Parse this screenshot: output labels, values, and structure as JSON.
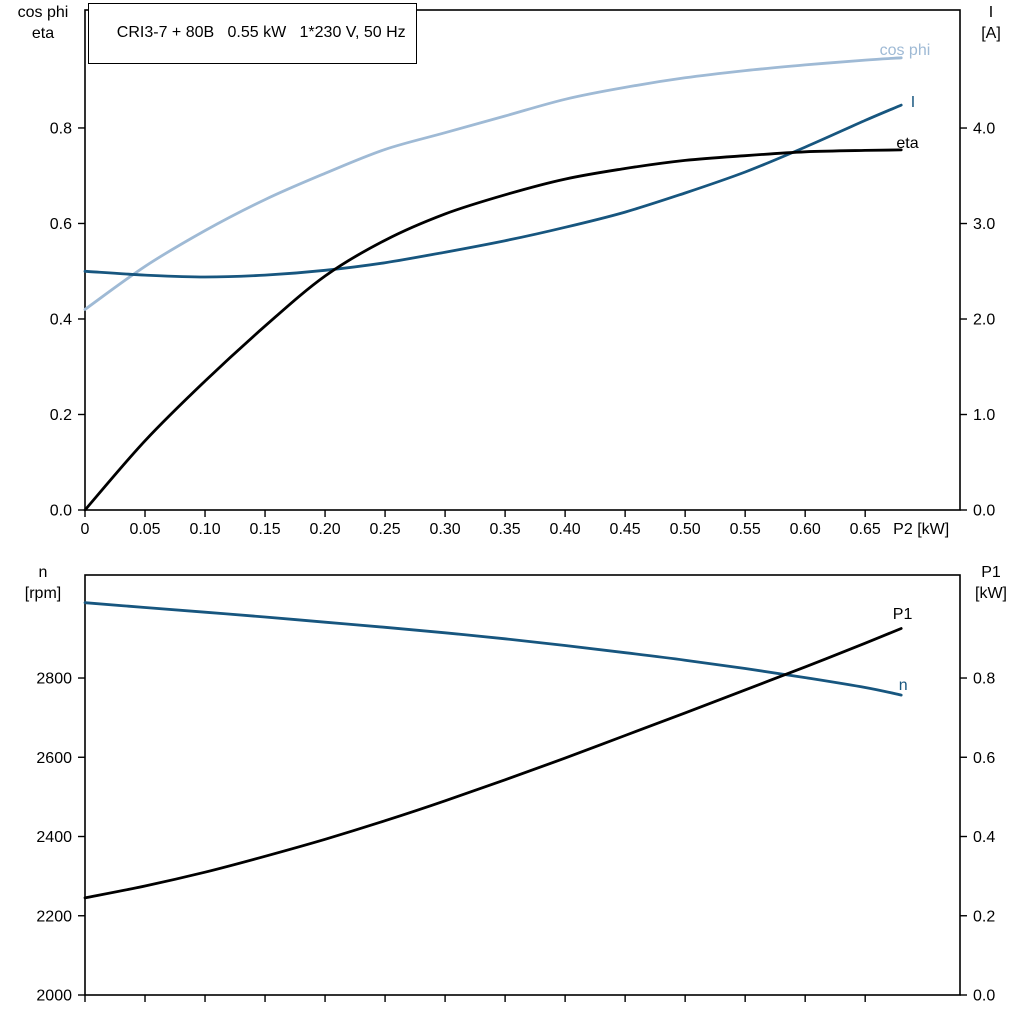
{
  "header": {
    "title": "CRI3-7 + 80B   0.55 kW   1*230 V, 50 Hz"
  },
  "colors": {
    "black": "#000000",
    "dark_blue": "#17567f",
    "light_blue": "#9fbad5",
    "frame": "#000000",
    "background": "#ffffff"
  },
  "chart_data": [
    {
      "type": "line",
      "title": "CRI3-7 + 80B   0.55 kW   1*230 V, 50 Hz",
      "x_axis": {
        "label": "P2 [kW]",
        "min": 0,
        "max": 0.729,
        "tick_values": [
          0,
          0.05,
          0.1,
          0.15,
          0.2,
          0.25,
          0.3,
          0.35,
          0.4,
          0.45,
          0.5,
          0.55,
          0.6,
          0.65
        ],
        "tick_labels": [
          "0",
          "0.05",
          "0.10",
          "0.15",
          "0.20",
          "0.25",
          "0.30",
          "0.35",
          "0.40",
          "0.45",
          "0.50",
          "0.55",
          "0.60",
          "0.65"
        ]
      },
      "left_axis": {
        "title_line1": "cos phi",
        "title_line2": "eta",
        "min": 0,
        "max": 1.047,
        "tick_values": [
          0,
          0.2,
          0.4,
          0.6,
          0.8
        ],
        "tick_labels": [
          "0.0",
          "0.2",
          "0.4",
          "0.6",
          "0.8"
        ]
      },
      "right_axis": {
        "title_line1": "I",
        "title_line2": "[A]",
        "min": 0,
        "max": 5.236,
        "tick_values": [
          0,
          1,
          2,
          3,
          4
        ],
        "tick_labels": [
          "0.0",
          "1.0",
          "2.0",
          "3.0",
          "4.0"
        ]
      },
      "series": [
        {
          "name": "cos phi",
          "axis": "left",
          "color": "light_blue",
          "x": [
            0,
            0.05,
            0.1,
            0.15,
            0.2,
            0.25,
            0.3,
            0.35,
            0.4,
            0.45,
            0.5,
            0.55,
            0.6,
            0.65,
            0.68
          ],
          "y": [
            0.42,
            0.51,
            0.585,
            0.65,
            0.705,
            0.755,
            0.79,
            0.825,
            0.86,
            0.885,
            0.905,
            0.92,
            0.932,
            0.942,
            0.947
          ],
          "label": {
            "text": "cos phi",
            "x": 0.662,
            "y": 0.963
          }
        },
        {
          "name": "I",
          "axis": "right",
          "color": "dark_blue",
          "x": [
            0,
            0.05,
            0.1,
            0.15,
            0.2,
            0.25,
            0.3,
            0.35,
            0.4,
            0.45,
            0.5,
            0.55,
            0.6,
            0.65,
            0.68
          ],
          "y": [
            2.5,
            2.46,
            2.44,
            2.46,
            2.51,
            2.59,
            2.7,
            2.82,
            2.96,
            3.12,
            3.32,
            3.54,
            3.8,
            4.08,
            4.24
          ],
          "label": {
            "text": "I",
            "x": 0.688,
            "y": 4.27
          }
        },
        {
          "name": "eta",
          "axis": "left",
          "color": "black",
          "x": [
            0,
            0.05,
            0.1,
            0.15,
            0.2,
            0.25,
            0.3,
            0.35,
            0.4,
            0.45,
            0.5,
            0.55,
            0.6,
            0.65,
            0.68
          ],
          "y": [
            0,
            0.145,
            0.27,
            0.385,
            0.49,
            0.565,
            0.62,
            0.66,
            0.693,
            0.715,
            0.732,
            0.742,
            0.75,
            0.753,
            0.754
          ],
          "label": {
            "text": "eta",
            "x": 0.676,
            "y": 0.768
          }
        }
      ]
    },
    {
      "type": "line",
      "title": "",
      "x_axis": {
        "label": "",
        "min": 0,
        "max": 0.729,
        "tick_values": [
          0,
          0.05,
          0.1,
          0.15,
          0.2,
          0.25,
          0.3,
          0.35,
          0.4,
          0.45,
          0.5,
          0.55,
          0.6,
          0.65
        ],
        "tick_labels": [
          "",
          "",
          "",
          "",
          "",
          "",
          "",
          "",
          "",
          "",
          "",
          "",
          "",
          ""
        ]
      },
      "left_axis": {
        "title_line1": "n",
        "title_line2": "[rpm]",
        "min": 2000,
        "max": 3060,
        "tick_values": [
          2000,
          2200,
          2400,
          2600,
          2800
        ],
        "tick_labels": [
          "2000",
          "2200",
          "2400",
          "2600",
          "2800"
        ]
      },
      "right_axis": {
        "title_line1": "P1",
        "title_line2": "[kW]",
        "min": 0,
        "max": 1.06,
        "tick_values": [
          0,
          0.2,
          0.4,
          0.6,
          0.8
        ],
        "tick_labels": [
          "0.0",
          "0.2",
          "0.4",
          "0.6",
          "0.8"
        ]
      },
      "series": [
        {
          "name": "n",
          "axis": "left",
          "color": "dark_blue",
          "x": [
            0,
            0.05,
            0.1,
            0.15,
            0.2,
            0.25,
            0.3,
            0.35,
            0.4,
            0.45,
            0.5,
            0.55,
            0.6,
            0.65,
            0.68
          ],
          "y": [
            2990,
            2978,
            2966,
            2954,
            2941,
            2928,
            2914,
            2899,
            2882,
            2864,
            2845,
            2824,
            2801,
            2776,
            2757
          ],
          "label": {
            "text": "n",
            "x": 0.678,
            "y": 2782
          }
        },
        {
          "name": "P1",
          "axis": "right",
          "color": "black",
          "x": [
            0,
            0.05,
            0.1,
            0.15,
            0.2,
            0.25,
            0.3,
            0.35,
            0.4,
            0.45,
            0.5,
            0.55,
            0.6,
            0.65,
            0.68
          ],
          "y": [
            0.245,
            0.275,
            0.31,
            0.35,
            0.393,
            0.44,
            0.49,
            0.543,
            0.598,
            0.655,
            0.712,
            0.77,
            0.828,
            0.888,
            0.925
          ],
          "label": {
            "text": "P1",
            "x": 0.673,
            "y": 0.962
          }
        }
      ]
    }
  ]
}
